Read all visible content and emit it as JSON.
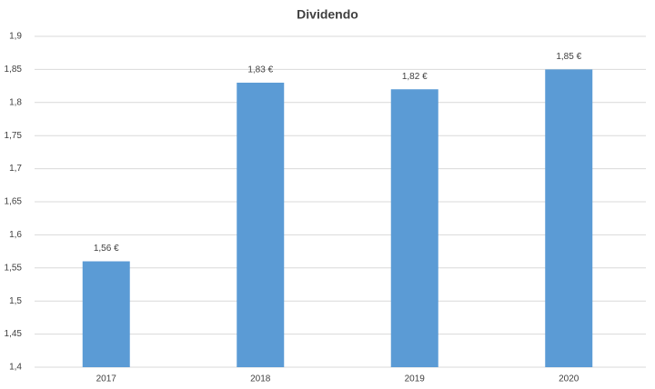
{
  "chart_data": {
    "type": "bar",
    "title": "Dividendo",
    "categories": [
      "2017",
      "2018",
      "2019",
      "2020"
    ],
    "values": [
      1.56,
      1.83,
      1.82,
      1.85
    ],
    "value_labels": [
      "1,56 €",
      "1,83 €",
      "1,82 €",
      "1,85 €"
    ],
    "color": "#5b9bd5",
    "ylim": [
      1.4,
      1.9
    ],
    "yticks": [
      {
        "value": 1.4,
        "label": "1,4"
      },
      {
        "value": 1.45,
        "label": "1,45"
      },
      {
        "value": 1.5,
        "label": "1,5"
      },
      {
        "value": 1.55,
        "label": "1,55"
      },
      {
        "value": 1.6,
        "label": "1,6"
      },
      {
        "value": 1.65,
        "label": "1,65"
      },
      {
        "value": 1.7,
        "label": "1,7"
      },
      {
        "value": 1.75,
        "label": "1,75"
      },
      {
        "value": 1.8,
        "label": "1,8"
      },
      {
        "value": 1.85,
        "label": "1,85"
      },
      {
        "value": 1.9,
        "label": "1,9"
      }
    ],
    "grid": true
  }
}
